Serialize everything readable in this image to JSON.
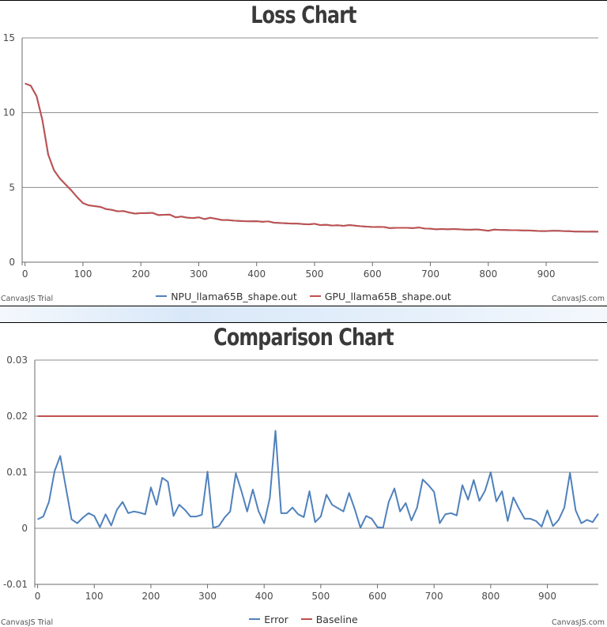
{
  "chart_data": [
    {
      "type": "line",
      "title": "Loss Chart",
      "xlim": [
        -5,
        990
      ],
      "ylim": [
        0,
        15
      ],
      "x_ticks": [
        0,
        100,
        200,
        300,
        400,
        500,
        600,
        700,
        800,
        900
      ],
      "y_ticks": [
        0,
        5,
        10,
        15
      ],
      "grid": "horizontal",
      "legend_position": "bottom-center",
      "x": [
        0,
        10,
        20,
        30,
        40,
        50,
        60,
        70,
        80,
        90,
        100,
        110,
        120,
        130,
        140,
        150,
        160,
        170,
        180,
        190,
        200,
        210,
        220,
        230,
        240,
        250,
        260,
        270,
        280,
        290,
        300,
        310,
        320,
        330,
        340,
        350,
        360,
        370,
        380,
        390,
        400,
        410,
        420,
        430,
        440,
        450,
        460,
        470,
        480,
        490,
        500,
        510,
        520,
        530,
        540,
        550,
        560,
        570,
        580,
        590,
        600,
        610,
        620,
        630,
        640,
        650,
        660,
        670,
        680,
        690,
        700,
        710,
        720,
        730,
        740,
        750,
        760,
        770,
        780,
        790,
        800,
        810,
        820,
        830,
        840,
        850,
        860,
        870,
        880,
        890,
        900,
        910,
        920,
        930,
        940,
        950,
        960,
        970,
        980,
        990
      ],
      "series": [
        {
          "name": "NPU_llama65B_shape.out",
          "color": "#4f81bc",
          "values": [
            11.95,
            11.8,
            11.1,
            9.5,
            7.2,
            6.15,
            5.6,
            5.2,
            4.8,
            4.35,
            3.95,
            3.8,
            3.75,
            3.7,
            3.55,
            3.5,
            3.4,
            3.42,
            3.32,
            3.25,
            3.28,
            3.28,
            3.3,
            3.15,
            3.17,
            3.18,
            3.0,
            3.05,
            2.98,
            2.95,
            3.0,
            2.88,
            2.97,
            2.9,
            2.82,
            2.82,
            2.78,
            2.76,
            2.74,
            2.73,
            2.74,
            2.7,
            2.73,
            2.64,
            2.62,
            2.6,
            2.58,
            2.58,
            2.55,
            2.53,
            2.57,
            2.48,
            2.5,
            2.45,
            2.47,
            2.43,
            2.48,
            2.44,
            2.4,
            2.38,
            2.35,
            2.36,
            2.35,
            2.28,
            2.3,
            2.3,
            2.3,
            2.28,
            2.32,
            2.25,
            2.24,
            2.2,
            2.22,
            2.2,
            2.22,
            2.2,
            2.18,
            2.17,
            2.19,
            2.15,
            2.1,
            2.18,
            2.16,
            2.15,
            2.14,
            2.14,
            2.12,
            2.12,
            2.1,
            2.08,
            2.08,
            2.1,
            2.1,
            2.08,
            2.07,
            2.05,
            2.05,
            2.04,
            2.05,
            2.04
          ]
        },
        {
          "name": "GPU_llama65B_shape.out",
          "color": "#c0504e",
          "values": [
            11.95,
            11.8,
            11.1,
            9.5,
            7.2,
            6.15,
            5.6,
            5.2,
            4.8,
            4.35,
            3.95,
            3.8,
            3.75,
            3.7,
            3.55,
            3.5,
            3.4,
            3.42,
            3.32,
            3.25,
            3.28,
            3.28,
            3.3,
            3.15,
            3.17,
            3.18,
            3.0,
            3.05,
            2.98,
            2.95,
            3.0,
            2.88,
            2.97,
            2.9,
            2.82,
            2.82,
            2.78,
            2.76,
            2.74,
            2.73,
            2.74,
            2.7,
            2.73,
            2.64,
            2.62,
            2.6,
            2.58,
            2.58,
            2.55,
            2.53,
            2.57,
            2.48,
            2.5,
            2.45,
            2.47,
            2.43,
            2.48,
            2.44,
            2.4,
            2.38,
            2.35,
            2.36,
            2.35,
            2.28,
            2.3,
            2.3,
            2.3,
            2.28,
            2.32,
            2.25,
            2.24,
            2.2,
            2.22,
            2.2,
            2.22,
            2.2,
            2.18,
            2.17,
            2.19,
            2.15,
            2.1,
            2.18,
            2.16,
            2.15,
            2.14,
            2.14,
            2.12,
            2.12,
            2.1,
            2.08,
            2.08,
            2.1,
            2.1,
            2.08,
            2.07,
            2.05,
            2.05,
            2.04,
            2.05,
            2.04
          ]
        }
      ]
    },
    {
      "type": "line",
      "title": "Comparison Chart",
      "xlim": [
        -5,
        990
      ],
      "ylim": [
        -0.01,
        0.03
      ],
      "x_ticks": [
        0,
        100,
        200,
        300,
        400,
        500,
        600,
        700,
        800,
        900
      ],
      "y_ticks": [
        -0.01,
        0,
        0.01,
        0.02,
        0.03
      ],
      "grid": "horizontal",
      "legend_position": "bottom-center",
      "x": [
        0,
        10,
        20,
        30,
        40,
        50,
        60,
        70,
        80,
        90,
        100,
        110,
        120,
        130,
        140,
        150,
        160,
        170,
        180,
        190,
        200,
        210,
        220,
        230,
        240,
        250,
        260,
        270,
        280,
        290,
        300,
        310,
        320,
        330,
        340,
        350,
        360,
        370,
        380,
        390,
        400,
        410,
        420,
        430,
        440,
        450,
        460,
        470,
        480,
        490,
        500,
        510,
        520,
        530,
        540,
        550,
        560,
        570,
        580,
        590,
        600,
        610,
        620,
        630,
        640,
        650,
        660,
        670,
        680,
        690,
        700,
        710,
        720,
        730,
        740,
        750,
        760,
        770,
        780,
        790,
        800,
        810,
        820,
        830,
        840,
        850,
        860,
        870,
        880,
        890,
        900,
        910,
        920,
        930,
        940,
        950,
        960,
        970,
        980,
        990
      ],
      "series": [
        {
          "name": "Error",
          "color": "#4f81bc",
          "values": [
            0.0016,
            0.0021,
            0.0047,
            0.0102,
            0.0129,
            0.0072,
            0.0016,
            0.0009,
            0.0019,
            0.0027,
            0.0022,
            0.0002,
            0.0025,
            0.0005,
            0.0033,
            0.0047,
            0.0027,
            0.003,
            0.0028,
            0.0025,
            0.0073,
            0.0042,
            0.009,
            0.0083,
            0.0022,
            0.0042,
            0.0033,
            0.0021,
            0.0021,
            0.0024,
            0.0101,
            0.0001,
            0.0004,
            0.0019,
            0.003,
            0.0098,
            0.0066,
            0.003,
            0.0069,
            0.0031,
            0.0009,
            0.0054,
            0.0174,
            0.0027,
            0.0027,
            0.0037,
            0.0025,
            0.002,
            0.0066,
            0.0011,
            0.0021,
            0.006,
            0.0042,
            0.0036,
            0.003,
            0.0063,
            0.0034,
            0.0001,
            0.0022,
            0.0017,
            0.0002,
            0.0001,
            0.0047,
            0.0071,
            0.003,
            0.0045,
            0.0014,
            0.0037,
            0.0087,
            0.0077,
            0.0065,
            0.0009,
            0.0025,
            0.0027,
            0.0023,
            0.0077,
            0.0051,
            0.0086,
            0.0049,
            0.0067,
            0.01,
            0.0048,
            0.0066,
            0.0013,
            0.0055,
            0.0035,
            0.0017,
            0.0017,
            0.0013,
            0.0003,
            0.0032,
            0.0004,
            0.0015,
            0.0037,
            0.0099,
            0.0032,
            0.0009,
            0.0015,
            0.0011,
            0.0026
          ]
        },
        {
          "name": "Baseline",
          "color": "#c0504e",
          "values": [
            0.02,
            0.02,
            0.02,
            0.02,
            0.02,
            0.02,
            0.02,
            0.02,
            0.02,
            0.02,
            0.02,
            0.02,
            0.02,
            0.02,
            0.02,
            0.02,
            0.02,
            0.02,
            0.02,
            0.02,
            0.02,
            0.02,
            0.02,
            0.02,
            0.02,
            0.02,
            0.02,
            0.02,
            0.02,
            0.02,
            0.02,
            0.02,
            0.02,
            0.02,
            0.02,
            0.02,
            0.02,
            0.02,
            0.02,
            0.02,
            0.02,
            0.02,
            0.02,
            0.02,
            0.02,
            0.02,
            0.02,
            0.02,
            0.02,
            0.02,
            0.02,
            0.02,
            0.02,
            0.02,
            0.02,
            0.02,
            0.02,
            0.02,
            0.02,
            0.02,
            0.02,
            0.02,
            0.02,
            0.02,
            0.02,
            0.02,
            0.02,
            0.02,
            0.02,
            0.02,
            0.02,
            0.02,
            0.02,
            0.02,
            0.02,
            0.02,
            0.02,
            0.02,
            0.02,
            0.02,
            0.02,
            0.02,
            0.02,
            0.02,
            0.02,
            0.02,
            0.02,
            0.02,
            0.02,
            0.02,
            0.02,
            0.02,
            0.02,
            0.02,
            0.02,
            0.02,
            0.02,
            0.02,
            0.02,
            0.02
          ]
        }
      ]
    }
  ],
  "credits": {
    "left": "CanvasJS Trial",
    "right": "CanvasJS.com"
  }
}
